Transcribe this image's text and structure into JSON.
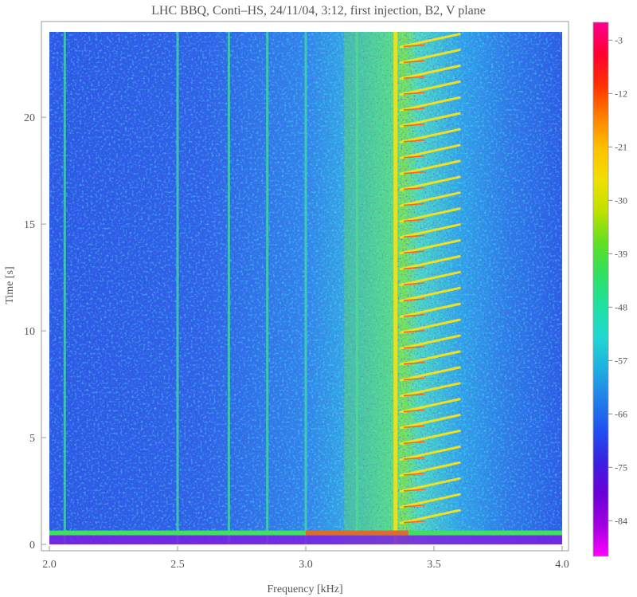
{
  "chart_data": {
    "type": "heatmap",
    "title": "LHC BBQ,  Conti–HS,  24/11/04,  3:12,  first injection,  B2,  V plane",
    "xlabel": "Frequency  [kHz]",
    "ylabel": "Time  [s]",
    "xlim": [
      2.0,
      4.0
    ],
    "ylim": [
      0,
      24
    ],
    "x_ticks": [
      2.0,
      2.5,
      3.0,
      3.5,
      4.0
    ],
    "x_tick_labels": [
      "2.0",
      "2.5",
      "3.0",
      "3.5",
      "4.0"
    ],
    "y_ticks": [
      0,
      5,
      10,
      15,
      20
    ],
    "y_tick_labels": [
      "0",
      "5",
      "10",
      "15",
      "20"
    ],
    "colorbar": {
      "range": [
        -90,
        0
      ],
      "ticks": [
        -3,
        -12,
        -21,
        -30,
        -39,
        -48,
        -57,
        -66,
        -75,
        -84
      ],
      "tick_labels": [
        "-3",
        "-12",
        "-21",
        "-30",
        "-39",
        "-48",
        "-57",
        "-66",
        "-75",
        "-84"
      ],
      "colors": [
        "#ff00ff",
        "#a000e0",
        "#6a00d8",
        "#3a20e0",
        "#2050f0",
        "#2080e8",
        "#20b0e0",
        "#20d8d0",
        "#20e0a0",
        "#30e060",
        "#60e020",
        "#c0e000",
        "#f0e000",
        "#ffc000",
        "#ff8000",
        "#ff3000",
        "#ff0030",
        "#ff0090"
      ]
    },
    "features": {
      "main_line_khz": 3.35,
      "fixed_lines_khz": [
        2.06,
        2.5,
        2.7,
        2.85,
        3.0,
        3.2
      ],
      "bright_band_khz": [
        3.0,
        3.35
      ],
      "chirp_start_khz": 3.37,
      "chirp_end_khz": 3.6,
      "chirp_count": 31,
      "injection_time_s": 0.5
    }
  }
}
